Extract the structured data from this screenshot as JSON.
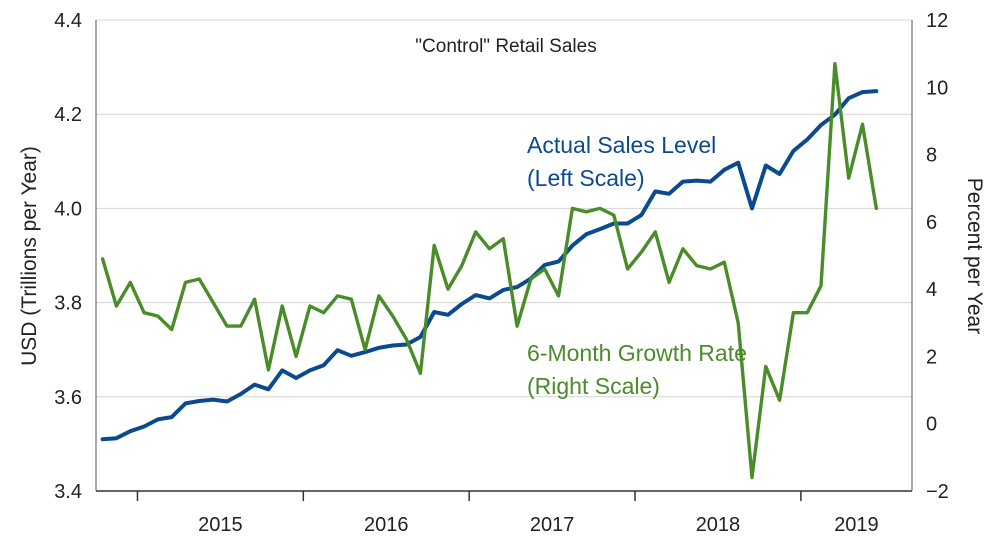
{
  "chart_data": {
    "type": "line",
    "title": "\"Control\" Retail Sales",
    "left_axis": {
      "label": "USD (Trillions per Year)",
      "ylim": [
        3.4,
        4.4
      ],
      "ticks": [
        3.4,
        3.6,
        3.8,
        4.0,
        4.2,
        4.4
      ],
      "tick_labels": [
        "3.4",
        "3.6",
        "3.8",
        "4.0",
        "4.2",
        "4.4"
      ]
    },
    "right_axis": {
      "label": "Percent per Year",
      "ylim": [
        -2,
        12
      ],
      "ticks": [
        -2,
        0,
        2,
        4,
        6,
        8,
        10,
        12
      ],
      "tick_labels": [
        "−2",
        "0",
        "2",
        "4",
        "6",
        "8",
        "10",
        "12"
      ]
    },
    "x_axis": {
      "start_year": 2014.75,
      "end_year": 2019.67,
      "year_labels": [
        "2015",
        "2016",
        "2017",
        "2018",
        "2019"
      ]
    },
    "grid": "horizontal",
    "series": [
      {
        "name": "Actual Sales Level",
        "annotation": [
          "Actual Sales Level",
          "(Left Scale)"
        ],
        "axis": "left",
        "color": "#0b4a8f",
        "start": 2014.79,
        "step": 0.0833,
        "values": [
          3.51,
          3.512,
          3.527,
          3.537,
          3.552,
          3.557,
          3.586,
          3.591,
          3.594,
          3.59,
          3.606,
          3.626,
          3.616,
          3.656,
          3.64,
          3.656,
          3.667,
          3.699,
          3.687,
          3.695,
          3.704,
          3.709,
          3.711,
          3.727,
          3.78,
          3.774,
          3.797,
          3.816,
          3.809,
          3.827,
          3.833,
          3.851,
          3.88,
          3.887,
          3.921,
          3.945,
          3.956,
          3.968,
          3.968,
          3.986,
          4.036,
          4.031,
          4.057,
          4.059,
          4.057,
          4.082,
          4.097,
          4.0,
          4.091,
          4.073,
          4.122,
          4.146,
          4.177,
          4.199,
          4.234,
          4.247,
          4.249
        ]
      },
      {
        "name": "6-Month Growth Rate",
        "annotation": [
          "6-Month Growth Rate",
          "(Right Scale)"
        ],
        "axis": "right",
        "color": "#4b8c2a",
        "start": 2014.79,
        "step": 0.0833,
        "values": [
          4.9,
          3.5,
          4.2,
          3.3,
          3.2,
          2.8,
          4.2,
          4.3,
          3.6,
          2.9,
          2.9,
          3.7,
          1.6,
          3.5,
          2.0,
          3.5,
          3.3,
          3.8,
          3.7,
          2.2,
          3.8,
          3.2,
          2.5,
          1.5,
          5.3,
          4.0,
          4.7,
          5.7,
          5.2,
          5.5,
          2.9,
          4.3,
          4.6,
          3.8,
          6.4,
          6.3,
          6.4,
          6.2,
          4.6,
          5.1,
          5.7,
          4.2,
          5.2,
          4.7,
          4.6,
          4.8,
          3.0,
          -1.6,
          1.7,
          0.7,
          3.3,
          3.3,
          4.1,
          10.7,
          7.3,
          8.9,
          6.4
        ]
      }
    ]
  }
}
